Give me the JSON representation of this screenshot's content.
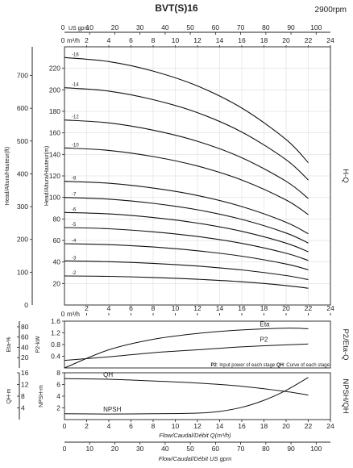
{
  "header": {
    "model": "BVT(S)16",
    "speed": "2900rpm"
  },
  "axes": {
    "us_gpm_label": "US gpm",
    "m3h_label": "m³/h",
    "zero_label": "0",
    "flow_label": "Flow/Caudal/Débit Q(m³/h)",
    "flow_gpm_label": "Flow/Caudal/Débit  US gpm",
    "head_m_label": "Head/Altura/Hauteur(m)",
    "head_ft_label": "Head/Altura/Hauteur(ft)",
    "p2_label": "P2-kW",
    "eta_label": "Eta-%",
    "npsh_label": "NPSH-m",
    "qh_label": "QH-m",
    "side_hq": "H-Q",
    "side_p2eta": "P2/Eta-Q",
    "side_npsh": "NPSH/QH"
  },
  "legend_note": {
    "p2_key": "P2",
    "p2_text": ": Input power of each stage ",
    "qh_key": "QH",
    "qh_text": ": Curve of each stage"
  },
  "chart_data": [
    {
      "type": "line",
      "name": "H-Q",
      "x_units": "m³/h",
      "xlim": [
        0,
        24
      ],
      "x_ticks": [
        2,
        4,
        6,
        8,
        10,
        12,
        14,
        16,
        18,
        20,
        22,
        24
      ],
      "x_top_gpm_ticks": [
        10,
        20,
        30,
        40,
        50,
        60,
        70,
        80,
        90,
        100
      ],
      "ylim": [
        0,
        240
      ],
      "y_ticks": [
        20,
        40,
        60,
        80,
        100,
        120,
        140,
        160,
        180,
        200,
        220
      ],
      "y_ft_ticks": [
        100,
        200,
        300,
        400,
        500,
        600,
        700
      ],
      "grid": true,
      "series": [
        {
          "name": "-2",
          "x": [
            0,
            4,
            8,
            12,
            16,
            20,
            22
          ],
          "y": [
            27.0,
            26.6,
            25.6,
            23.9,
            21.6,
            18.1,
            15.6
          ]
        },
        {
          "name": "-3",
          "x": [
            0,
            4,
            8,
            12,
            16,
            20,
            22
          ],
          "y": [
            41.0,
            40.3,
            38.7,
            36.2,
            32.6,
            27.4,
            23.6
          ]
        },
        {
          "name": "-4",
          "x": [
            0,
            4,
            8,
            12,
            16,
            20,
            22
          ],
          "y": [
            57.0,
            56.1,
            53.9,
            50.4,
            45.4,
            38.1,
            32.8
          ]
        },
        {
          "name": "-5",
          "x": [
            0,
            4,
            8,
            12,
            16,
            20,
            22
          ],
          "y": [
            72.0,
            70.9,
            68.0,
            63.7,
            57.3,
            48.1,
            41.4
          ]
        },
        {
          "name": "-6",
          "x": [
            0,
            4,
            8,
            12,
            16,
            20,
            22
          ],
          "y": [
            86.0,
            84.7,
            81.3,
            76.1,
            68.5,
            57.5,
            49.5
          ]
        },
        {
          "name": "-7",
          "x": [
            0,
            4,
            8,
            12,
            16,
            20,
            22
          ],
          "y": [
            100.0,
            98.4,
            94.5,
            88.5,
            79.6,
            66.9,
            57.6
          ]
        },
        {
          "name": "-8",
          "x": [
            0,
            4,
            8,
            12,
            16,
            20,
            22
          ],
          "y": [
            115.0,
            113.2,
            108.7,
            101.8,
            91.5,
            76.9,
            66.2
          ]
        },
        {
          "name": "-10",
          "x": [
            0,
            4,
            8,
            12,
            16,
            20,
            22
          ],
          "y": [
            146.0,
            143.7,
            138.0,
            129.2,
            116.2,
            97.6,
            84.0
          ]
        },
        {
          "name": "-12",
          "x": [
            0,
            4,
            8,
            12,
            16,
            20,
            22
          ],
          "y": [
            172.0,
            169.3,
            162.5,
            152.2,
            136.9,
            115.0,
            99.0
          ]
        },
        {
          "name": "-14",
          "x": [
            0,
            4,
            8,
            12,
            16,
            20,
            22
          ],
          "y": [
            202.0,
            198.8,
            190.9,
            178.8,
            160.8,
            135.1,
            116.2
          ]
        },
        {
          "name": "-16",
          "x": [
            0,
            4,
            8,
            12,
            16,
            20,
            22
          ],
          "y": [
            230.0,
            226.3,
            217.4,
            203.6,
            183.1,
            153.8,
            132.3
          ]
        }
      ]
    },
    {
      "type": "line",
      "name": "P2/Eta-Q",
      "x_units": "m³/h",
      "xlim": [
        0,
        24
      ],
      "x_ticks": [
        2,
        4,
        6,
        8,
        10,
        12,
        14,
        16,
        18,
        20,
        22,
        24
      ],
      "ylim": [
        0,
        1.6
      ],
      "y_ticks": [
        0.4,
        0.8,
        1.2,
        1.6
      ],
      "y_eta_ticks": [
        20,
        40,
        60,
        80
      ],
      "series": [
        {
          "name": "Eta",
          "x": [
            0,
            4,
            8,
            12,
            16,
            20,
            22
          ],
          "y": [
            0.0,
            0.62,
            0.98,
            1.18,
            1.3,
            1.36,
            1.34
          ]
        },
        {
          "name": "P2",
          "x": [
            0,
            4,
            8,
            12,
            16,
            20,
            22
          ],
          "y": [
            0.26,
            0.38,
            0.52,
            0.62,
            0.72,
            0.79,
            0.82
          ]
        }
      ]
    },
    {
      "type": "line",
      "name": "NPSH/QH",
      "x_units": "m³/h",
      "xlim": [
        0,
        24
      ],
      "x_ticks": [
        2,
        4,
        6,
        8,
        10,
        12,
        14,
        16,
        18,
        20,
        22,
        24
      ],
      "x_bottom_gpm_ticks": [
        10,
        20,
        30,
        40,
        50,
        60,
        70,
        80,
        90,
        100
      ],
      "ylim": [
        0,
        8
      ],
      "y_ticks": [
        2,
        4,
        6,
        8
      ],
      "y_qh_ticks": [
        4,
        8,
        12,
        16
      ],
      "series": [
        {
          "name": "QH",
          "x": [
            0,
            4,
            8,
            12,
            16,
            20,
            22
          ],
          "y": [
            7.0,
            6.9,
            6.6,
            6.25,
            5.7,
            4.8,
            4.2
          ]
        },
        {
          "name": "NPSH",
          "x": [
            0,
            4,
            8,
            12,
            14,
            16,
            18,
            20,
            22
          ],
          "y": [
            1.0,
            0.95,
            1.0,
            1.1,
            1.4,
            2.1,
            3.3,
            5.0,
            7.2
          ]
        }
      ]
    }
  ]
}
